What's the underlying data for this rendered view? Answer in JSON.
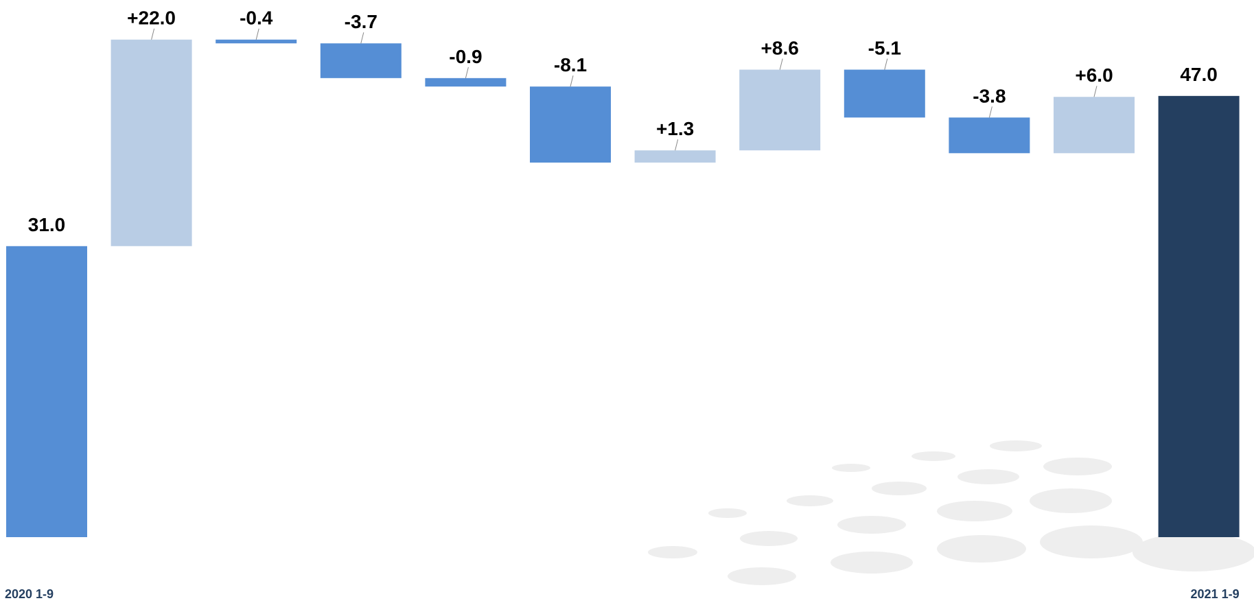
{
  "chart_data": {
    "type": "waterfall",
    "categories": [
      "2020 1-9",
      null,
      null,
      null,
      null,
      null,
      null,
      null,
      null,
      null,
      null,
      "2021 1-9"
    ],
    "values": [
      31,
      22,
      -0.4,
      -3.7,
      -0.9,
      -8.1,
      1.3,
      8.6,
      -5.1,
      -3.8,
      6,
      47
    ],
    "value_labels": [
      "31.0",
      "+22.0",
      "-0.4",
      "-3.7",
      "-0.9",
      "-8.1",
      "+1.3",
      "+8.6",
      "-5.1",
      "-3.8",
      "+6.0",
      "47.0"
    ],
    "measures": [
      "absolute",
      "relative",
      "relative",
      "relative",
      "relative",
      "relative",
      "relative",
      "relative",
      "relative",
      "relative",
      "relative",
      "total"
    ],
    "colors": {
      "absolute": "#558ed5",
      "increase": "#b9cde5",
      "decrease": "#558ed5",
      "total": "#243f60"
    },
    "ylim": [
      0,
      57
    ]
  }
}
